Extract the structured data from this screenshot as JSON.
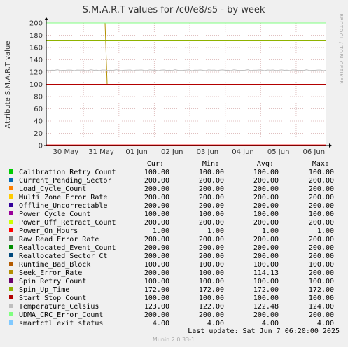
{
  "chart_data": {
    "type": "line",
    "title": "S.M.A.R.T values for /c0/e8/s5 - by week",
    "ylabel": "Attribute S.M.A.R.T value",
    "side_label": "RRDTOOL / TOBI OETIKER",
    "ylim": [
      0,
      200
    ],
    "y_ticks": [
      "0",
      "20",
      "40",
      "60",
      "80",
      "100",
      "120",
      "140",
      "160",
      "180",
      "200"
    ],
    "x_ticks": [
      "30 May",
      "31 May",
      "01 Jun",
      "02 Jun",
      "03 Jun",
      "04 Jun",
      "05 Jun",
      "06 Jun"
    ],
    "grid": true,
    "legend_headers": {
      "cur": "Cur:",
      "min": "Min:",
      "avg": "Avg:",
      "max": "Max:"
    },
    "series": [
      {
        "name": "Calibration_Retry_Count",
        "color": "#00cc00",
        "cur": "100.00",
        "min": "100.00",
        "avg": "100.00",
        "max": "100.00",
        "y": 100
      },
      {
        "name": "Current_Pending_Sector",
        "color": "#0066b3",
        "cur": "200.00",
        "min": "200.00",
        "avg": "200.00",
        "max": "200.00",
        "y": 200
      },
      {
        "name": "Load_Cycle_Count",
        "color": "#ff8000",
        "cur": "200.00",
        "min": "200.00",
        "avg": "200.00",
        "max": "200.00",
        "y": 200
      },
      {
        "name": "Multi_Zone_Error_Rate",
        "color": "#ffcc00",
        "cur": "200.00",
        "min": "200.00",
        "avg": "200.00",
        "max": "200.00",
        "y": 200
      },
      {
        "name": "Offline_Uncorrectable",
        "color": "#330099",
        "cur": "200.00",
        "min": "200.00",
        "avg": "200.00",
        "max": "200.00",
        "y": 200
      },
      {
        "name": "Power_Cycle_Count",
        "color": "#990099",
        "cur": "100.00",
        "min": "100.00",
        "avg": "100.00",
        "max": "100.00",
        "y": 100
      },
      {
        "name": "Power_Off_Retract_Count",
        "color": "#ccff00",
        "cur": "200.00",
        "min": "200.00",
        "avg": "200.00",
        "max": "200.00",
        "y": 200
      },
      {
        "name": "Power_On_Hours",
        "color": "#ff0000",
        "cur": "1.00",
        "min": "1.00",
        "avg": "1.00",
        "max": "1.00",
        "y": 1
      },
      {
        "name": "Raw_Read_Error_Rate",
        "color": "#808080",
        "cur": "200.00",
        "min": "200.00",
        "avg": "200.00",
        "max": "200.00",
        "y": 200
      },
      {
        "name": "Reallocated_Event_Count",
        "color": "#008f00",
        "cur": "200.00",
        "min": "200.00",
        "avg": "200.00",
        "max": "200.00",
        "y": 200
      },
      {
        "name": "Reallocated_Sector_Ct",
        "color": "#00487d",
        "cur": "200.00",
        "min": "200.00",
        "avg": "200.00",
        "max": "200.00",
        "y": 200
      },
      {
        "name": "Runtime_Bad_Block",
        "color": "#b35a00",
        "cur": "100.00",
        "min": "100.00",
        "avg": "100.00",
        "max": "100.00",
        "y": 100
      },
      {
        "name": "Seek_Error_Rate",
        "color": "#b38f00",
        "cur": "200.00",
        "min": "100.00",
        "avg": "114.13",
        "max": "200.00",
        "y": 200,
        "step": {
          "from": 200,
          "to": 100,
          "at": 0.21
        }
      },
      {
        "name": "Spin_Retry_Count",
        "color": "#6b006b",
        "cur": "100.00",
        "min": "100.00",
        "avg": "100.00",
        "max": "100.00",
        "y": 100
      },
      {
        "name": "Spin_Up_Time",
        "color": "#8fb300",
        "cur": "172.00",
        "min": "172.00",
        "avg": "172.00",
        "max": "172.00",
        "y": 172
      },
      {
        "name": "Start_Stop_Count",
        "color": "#b30000",
        "cur": "100.00",
        "min": "100.00",
        "avg": "100.00",
        "max": "100.00",
        "y": 100
      },
      {
        "name": "Temperature_Celsius",
        "color": "#bebebe",
        "cur": "123.00",
        "min": "122.00",
        "avg": "122.48",
        "max": "124.00",
        "y": 123,
        "noisy": true
      },
      {
        "name": "UDMA_CRC_Error_Count",
        "color": "#80ff80",
        "cur": "200.00",
        "min": "200.00",
        "avg": "200.00",
        "max": "200.00",
        "y": 200
      },
      {
        "name": "smartctl_exit_status",
        "color": "#80c9ff",
        "cur": "4.00",
        "min": "4.00",
        "avg": "4.00",
        "max": "4.00",
        "y": 4
      }
    ],
    "last_update": "Last update:  Sat Jun  7 06:20:00 2025",
    "footer": "Munin 2.0.33-1"
  }
}
